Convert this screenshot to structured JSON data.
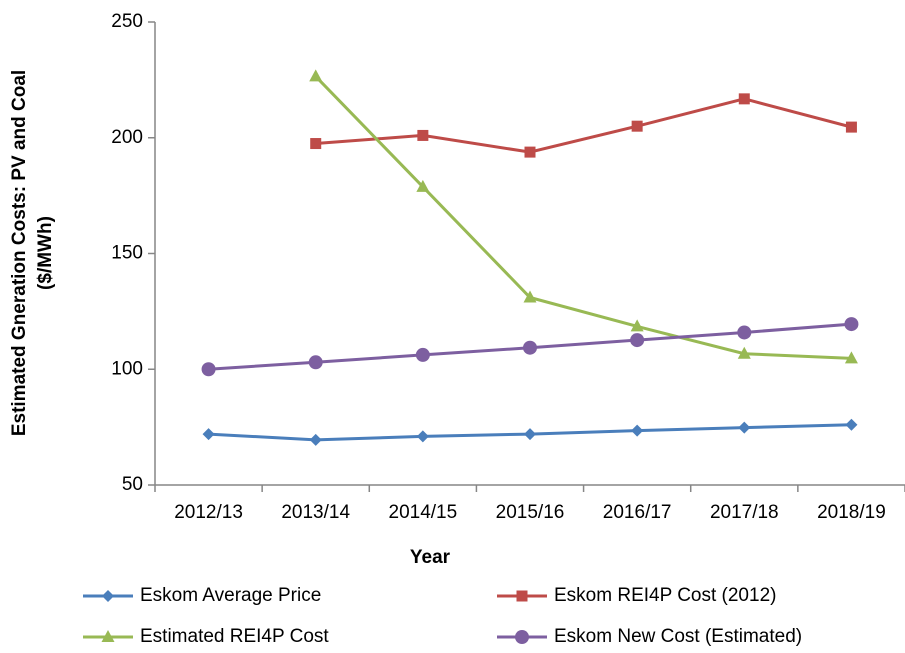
{
  "chart_data": {
    "type": "line",
    "xlabel": "Year",
    "ylabel": [
      "Estimated Gneration Costs: PV and Coal",
      "($/MWh)"
    ],
    "categories": [
      "2012/13",
      "2013/14",
      "2014/15",
      "2015/16",
      "2016/17",
      "2017/18",
      "2018/19"
    ],
    "series": [
      {
        "name": "Eskom Average Price",
        "color": "#4a7ebb",
        "marker": "diamond",
        "values": [
          72,
          69.5,
          71,
          72,
          73.5,
          74.8,
          76
        ]
      },
      {
        "name": "Eskom REI4P Cost (2012)",
        "color": "#be4b48",
        "marker": "square",
        "values": [
          null,
          197.5,
          201,
          193.8,
          205,
          216.8,
          204.6
        ]
      },
      {
        "name": "Estimated REI4P Cost",
        "color": "#98b954",
        "marker": "triangle",
        "values": [
          null,
          226.5,
          178.8,
          131,
          118.5,
          106.7,
          104.7
        ]
      },
      {
        "name": "Eskom New Cost (Estimated)",
        "color": "#7d5fa0",
        "marker": "circle",
        "values": [
          100,
          103,
          106.2,
          109.3,
          112.6,
          115.9,
          119.5
        ]
      }
    ],
    "ylim": [
      50,
      250
    ],
    "yticks": [
      50,
      100,
      150,
      200,
      250
    ]
  }
}
